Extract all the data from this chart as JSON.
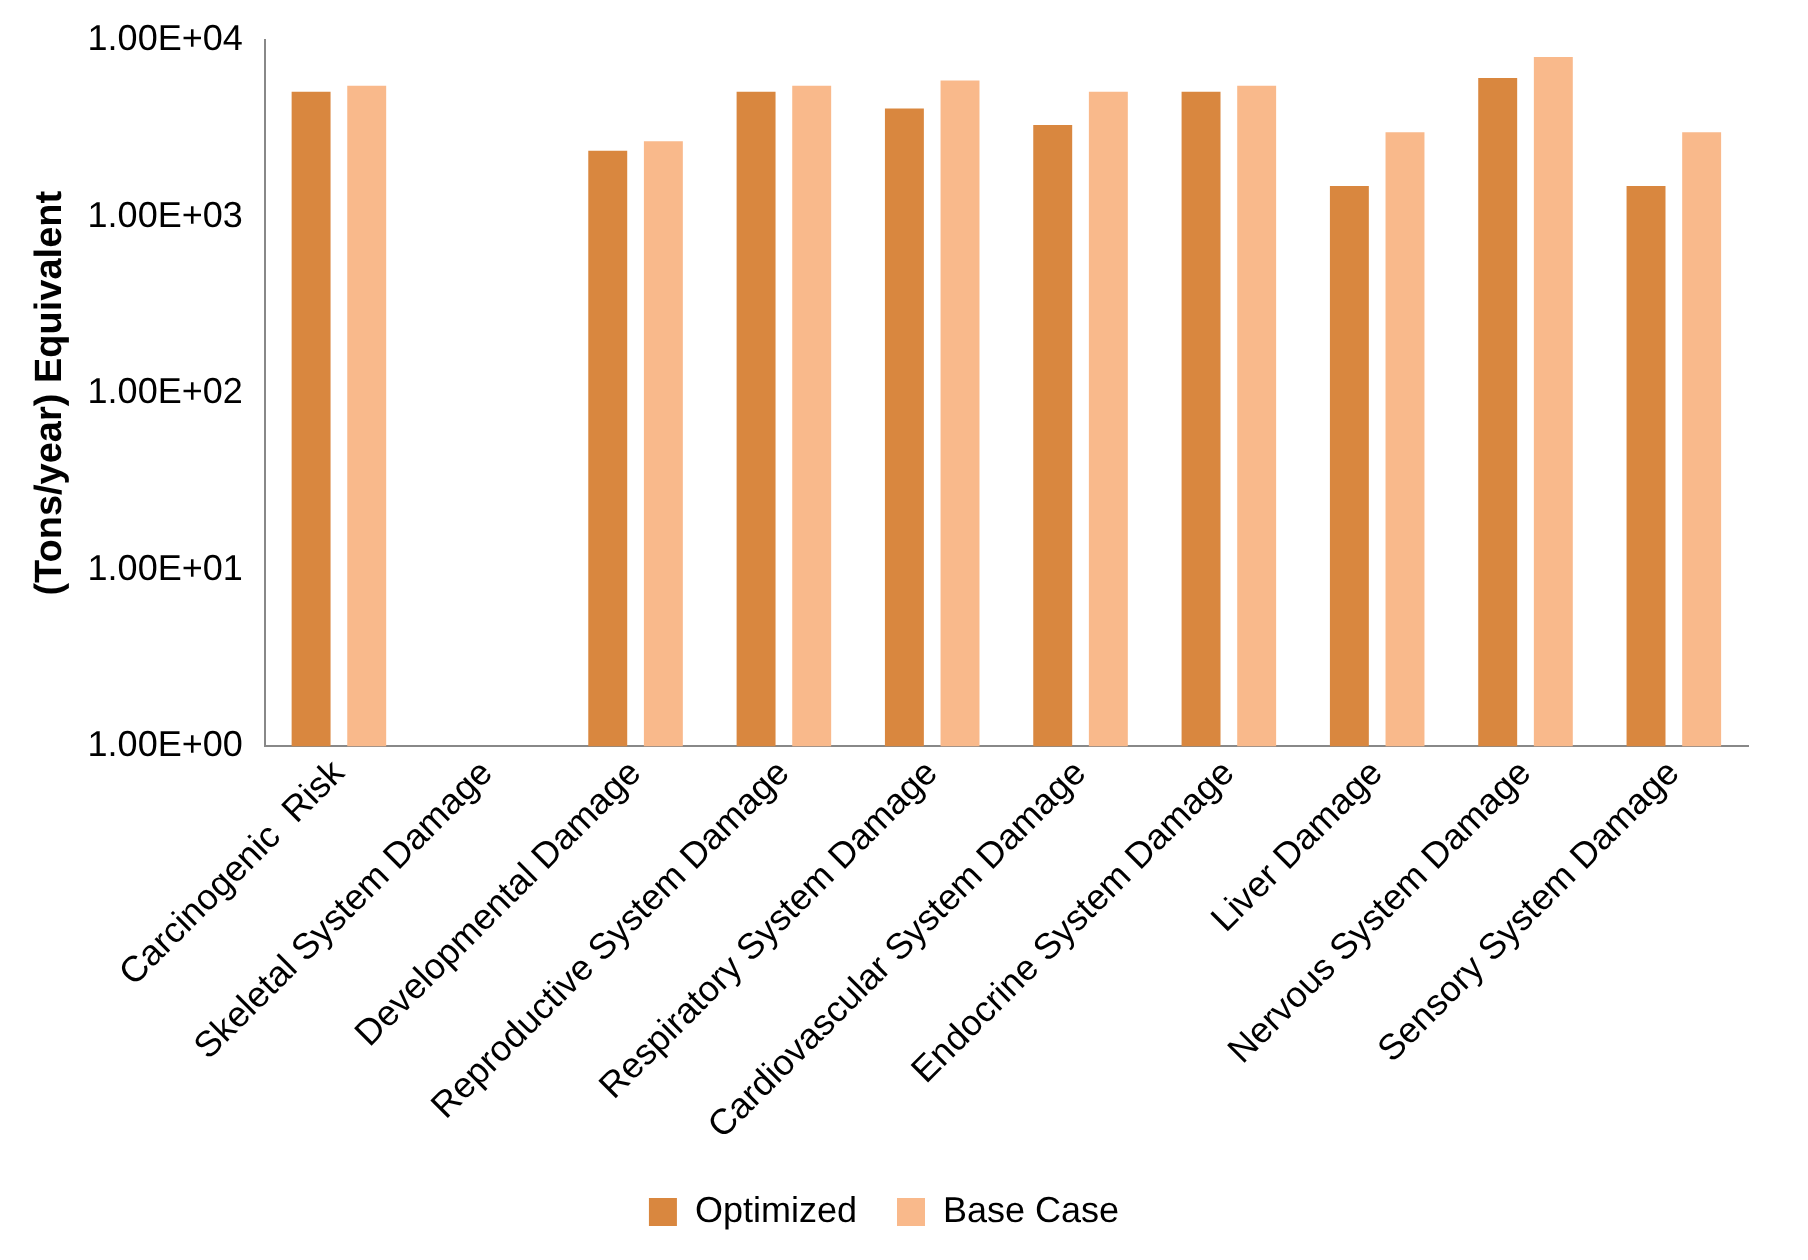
{
  "chart_data": {
    "type": "bar",
    "ylabel": "(Tons/year) Equivalent",
    "categories": [
      "Carcinogenic  Risk",
      "Skeletal System Damage",
      "Developmental Damage",
      "Reproductive System Damage",
      "Respiratory System Damage",
      "Cardiovascular System Damage",
      "Endocrine System Damage",
      "Liver Damage",
      "Nervous System Damage",
      "Sensory System Damage"
    ],
    "series": [
      {
        "name": "Optimized",
        "color": "#d9873f",
        "values": [
          5100,
          null,
          2360,
          5100,
          4100,
          3300,
          5100,
          1490,
          6100,
          1490
        ]
      },
      {
        "name": "Base Case",
        "color": "#f9b98b",
        "values": [
          5500,
          null,
          2670,
          5500,
          5900,
          5100,
          5500,
          3000,
          8000,
          3000
        ]
      }
    ],
    "log": "y",
    "ylim": [
      1,
      10000
    ],
    "yticks": [
      {
        "value": 1,
        "label": "1.00E+00"
      },
      {
        "value": 10,
        "label": "1.00E+01"
      },
      {
        "value": 100,
        "label": "1.00E+02"
      },
      {
        "value": 1000,
        "label": "1.00E+03"
      },
      {
        "value": 10000,
        "label": "1.00E+04"
      }
    ],
    "grid": false,
    "legend": "bottom"
  }
}
